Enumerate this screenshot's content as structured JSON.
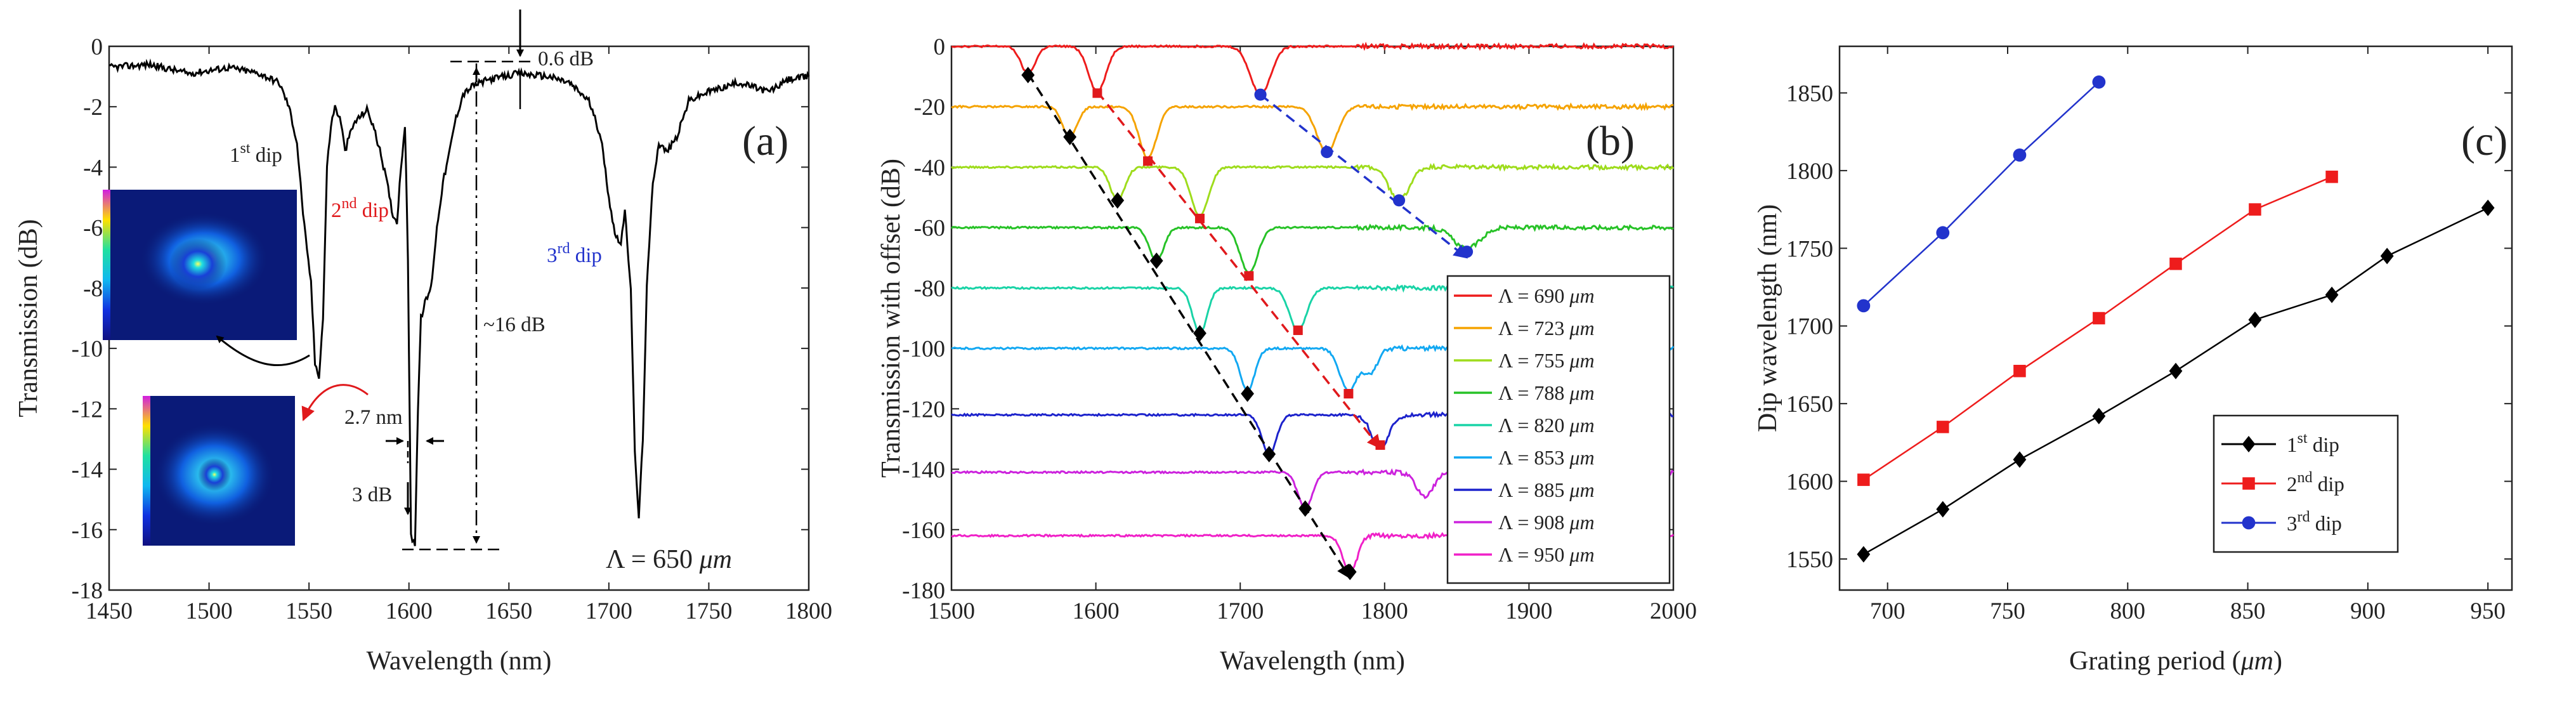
{
  "chart_data": [
    {
      "panel": "a",
      "type": "line",
      "panel_label": "(a)",
      "xlabel": "Wavelength (nm)",
      "ylabel": "Transmission (dB)",
      "xlim": [
        1450,
        1800
      ],
      "ylim": [
        -18,
        0
      ],
      "xticks": [
        1450,
        1500,
        1550,
        1600,
        1650,
        1700,
        1750,
        1800
      ],
      "yticks": [
        0,
        -2,
        -4,
        -6,
        -8,
        -10,
        -12,
        -14,
        -16,
        -18
      ],
      "series": [
        {
          "name": "transmission",
          "color": "#000000",
          "points": [
            [
              1450,
              -0.7
            ],
            [
              1470,
              -0.6
            ],
            [
              1490,
              -0.9
            ],
            [
              1510,
              -0.7
            ],
            [
              1525,
              -0.9
            ],
            [
              1535,
              -1.2
            ],
            [
              1540,
              -2.0
            ],
            [
              1544,
              -3.2
            ],
            [
              1547,
              -5.5
            ],
            [
              1549,
              -6.8
            ],
            [
              1551,
              -7.8
            ],
            [
              1553,
              -10.5
            ],
            [
              1555,
              -10.9
            ],
            [
              1557,
              -9.0
            ],
            [
              1559,
              -4.0
            ],
            [
              1561,
              -2.6
            ],
            [
              1563,
              -2.0
            ],
            [
              1566,
              -2.5
            ],
            [
              1568,
              -3.5
            ],
            [
              1570,
              -3.0
            ],
            [
              1573,
              -2.5
            ],
            [
              1576,
              -2.3
            ],
            [
              1579,
              -2.1
            ],
            [
              1582,
              -2.6
            ],
            [
              1586,
              -3.6
            ],
            [
              1589,
              -4.5
            ],
            [
              1592,
              -5.6
            ],
            [
              1594,
              -5.8
            ],
            [
              1596,
              -4.0
            ],
            [
              1598,
              -2.6
            ],
            [
              1599.5,
              -7.0
            ],
            [
              1601,
              -16.2
            ],
            [
              1603,
              -16.5
            ],
            [
              1604.5,
              -12.0
            ],
            [
              1606,
              -9.0
            ],
            [
              1608,
              -8.5
            ],
            [
              1611,
              -8.0
            ],
            [
              1614,
              -6.0
            ],
            [
              1617,
              -4.5
            ],
            [
              1620,
              -3.6
            ],
            [
              1623,
              -2.5
            ],
            [
              1627,
              -1.6
            ],
            [
              1632,
              -1.3
            ],
            [
              1640,
              -1.1
            ],
            [
              1655,
              -0.9
            ],
            [
              1670,
              -1.0
            ],
            [
              1680,
              -1.2
            ],
            [
              1690,
              -1.8
            ],
            [
              1696,
              -3.0
            ],
            [
              1700,
              -5.0
            ],
            [
              1703,
              -6.2
            ],
            [
              1706,
              -6.5
            ],
            [
              1708,
              -5.5
            ],
            [
              1711,
              -8.0
            ],
            [
              1713,
              -13.5
            ],
            [
              1715,
              -15.6
            ],
            [
              1717,
              -13.0
            ],
            [
              1719,
              -8.0
            ],
            [
              1722,
              -4.5
            ],
            [
              1725,
              -3.2
            ],
            [
              1729,
              -3.5
            ],
            [
              1734,
              -3.0
            ],
            [
              1740,
              -1.8
            ],
            [
              1750,
              -1.5
            ],
            [
              1765,
              -1.2
            ],
            [
              1780,
              -1.5
            ],
            [
              1790,
              -1.1
            ],
            [
              1800,
              -1.0
            ]
          ]
        }
      ],
      "annotations": {
        "dip1": {
          "text": "dip",
          "sup": "st",
          "num": "1"
        },
        "dip2": {
          "text": "dip",
          "sup": "nd",
          "num": "2",
          "color": "#e0191c"
        },
        "dip3": {
          "text": "dip",
          "sup": "rd",
          "num": "3",
          "color": "#2233cc"
        },
        "db06": "0.6 dB",
        "db16": "~16 dB",
        "nm27": "2.7 nm",
        "db3": "3 dB",
        "period_prefix": "Λ = 650 ",
        "period_unit": "μm"
      }
    },
    {
      "panel": "b",
      "type": "line",
      "panel_label": "(b)",
      "xlabel": "Wavelength (nm)",
      "ylabel": "Transmission with offset (dB)",
      "xlim": [
        1500,
        2000
      ],
      "ylim": [
        -180,
        0
      ],
      "xticks": [
        1500,
        1600,
        1700,
        1800,
        1900,
        2000
      ],
      "yticks": [
        0,
        -20,
        -40,
        -60,
        -80,
        -100,
        -120,
        -140,
        -160,
        -180
      ],
      "legend_prefix": "Λ = ",
      "legend_unit": "μm",
      "series": [
        {
          "name": "690",
          "color": "#ee1c1c",
          "offset": 0,
          "dips": [
            [
              1553,
              9,
              5
            ],
            [
              1601,
              15,
              6
            ],
            [
              1714,
              16,
              7
            ]
          ],
          "marker_values": {
            "diamond": [
              1553,
              -9.5
            ],
            "square": [
              1601,
              -15.5
            ],
            "circle": [
              1714,
              -16
            ]
          }
        },
        {
          "name": "723",
          "color": "#f5a300",
          "offset": -20,
          "dips": [
            [
              1582,
              10,
              5
            ],
            [
              1636,
              17,
              6
            ],
            [
              1760,
              15,
              7
            ]
          ],
          "marker_values": {
            "diamond": [
              1582,
              -30
            ],
            "square": [
              1636,
              -38
            ],
            "circle": [
              1760,
              -35
            ]
          }
        },
        {
          "name": "755",
          "color": "#9edc1c",
          "offset": -40,
          "dips": [
            [
              1615,
              11,
              5
            ],
            [
              1672,
              16,
              6
            ],
            [
              1810,
              11,
              7
            ]
          ],
          "marker_values": {
            "diamond": [
              1615,
              -51
            ],
            "square": [
              1672,
              -57
            ],
            "circle": [
              1810,
              -51
            ]
          }
        },
        {
          "name": "788",
          "color": "#27c227",
          "offset": -60,
          "dips": [
            [
              1642,
              11,
              5
            ],
            [
              1706,
              15,
              6
            ],
            [
              1857,
              7,
              9
            ]
          ],
          "marker_values": {
            "diamond": [
              1642,
              -71
            ],
            "square": [
              1706,
              -76
            ],
            "circle": [
              1857,
              -68
            ]
          }
        },
        {
          "name": "820",
          "color": "#19d3a6",
          "offset": -80,
          "dips": [
            [
              1672,
              15,
              5
            ],
            [
              1740,
              14,
              6
            ]
          ],
          "marker_values": {
            "diamond": [
              1672,
              -95
            ],
            "square": [
              1740,
              -94
            ]
          }
        },
        {
          "name": "853",
          "color": "#12a8f2",
          "offset": -100,
          "dips": [
            [
              1705,
              14,
              5
            ],
            [
              1775,
              14,
              6
            ],
            [
              1790,
              8,
              5
            ]
          ],
          "marker_values": {
            "diamond": [
              1705,
              -115
            ],
            "square": [
              1775,
              -115
            ]
          }
        },
        {
          "name": "885",
          "color": "#1c22cc",
          "offset": -122,
          "dips": [
            [
              1720,
              13,
              5
            ],
            [
              1797,
              11,
              6
            ]
          ],
          "marker_values": {
            "diamond": [
              1720,
              -135
            ],
            "square": [
              1797,
              -132
            ]
          }
        },
        {
          "name": "908",
          "color": "#cc22dd",
          "offset": -141,
          "dips": [
            [
              1745,
              12,
              5
            ],
            [
              1828,
              8,
              6
            ]
          ],
          "marker_values": {
            "diamond": [
              1745,
              -153
            ]
          }
        },
        {
          "name": "950",
          "color": "#f020c8",
          "offset": -162,
          "dips": [
            [
              1776,
              12,
              5
            ]
          ],
          "marker_values": {
            "diamond": [
              1776,
              -174
            ]
          }
        }
      ],
      "arrows": [
        {
          "color": "#000000",
          "from": [
            1553,
            -9
          ],
          "to": [
            1776,
            -176
          ]
        },
        {
          "color": "#e0191c",
          "from": [
            1601,
            -15
          ],
          "to": [
            1797,
            -133
          ]
        },
        {
          "color": "#2233cc",
          "from": [
            1714,
            -16
          ],
          "to": [
            1857,
            -70
          ]
        }
      ]
    },
    {
      "panel": "c",
      "type": "line",
      "panel_label": "(c)",
      "xlabel": "Grating period (μm)",
      "ylabel": "Dip wavelength (nm)",
      "xlim": [
        680,
        960
      ],
      "ylim": [
        1530,
        1880
      ],
      "xticks": [
        700,
        750,
        800,
        850,
        900,
        950
      ],
      "yticks": [
        1550,
        1600,
        1650,
        1700,
        1750,
        1800,
        1850
      ],
      "series": [
        {
          "name": "1",
          "sup": "st",
          "label": "dip",
          "color": "#000000",
          "marker": "diamond",
          "x": [
            690,
            723,
            755,
            788,
            820,
            853,
            885,
            908,
            950
          ],
          "y": [
            1553,
            1582,
            1614,
            1642,
            1671,
            1704,
            1720,
            1745,
            1776
          ]
        },
        {
          "name": "2",
          "sup": "nd",
          "label": "dip",
          "color": "#ee1c1c",
          "marker": "square",
          "x": [
            690,
            723,
            755,
            788,
            820,
            853,
            885
          ],
          "y": [
            1601,
            1635,
            1671,
            1705,
            1740,
            1775,
            1796
          ]
        },
        {
          "name": "3",
          "sup": "rd",
          "label": "dip",
          "color": "#2233cc",
          "marker": "circle",
          "x": [
            690,
            723,
            755,
            788
          ],
          "y": [
            1713,
            1760,
            1810,
            1857
          ]
        }
      ]
    }
  ]
}
